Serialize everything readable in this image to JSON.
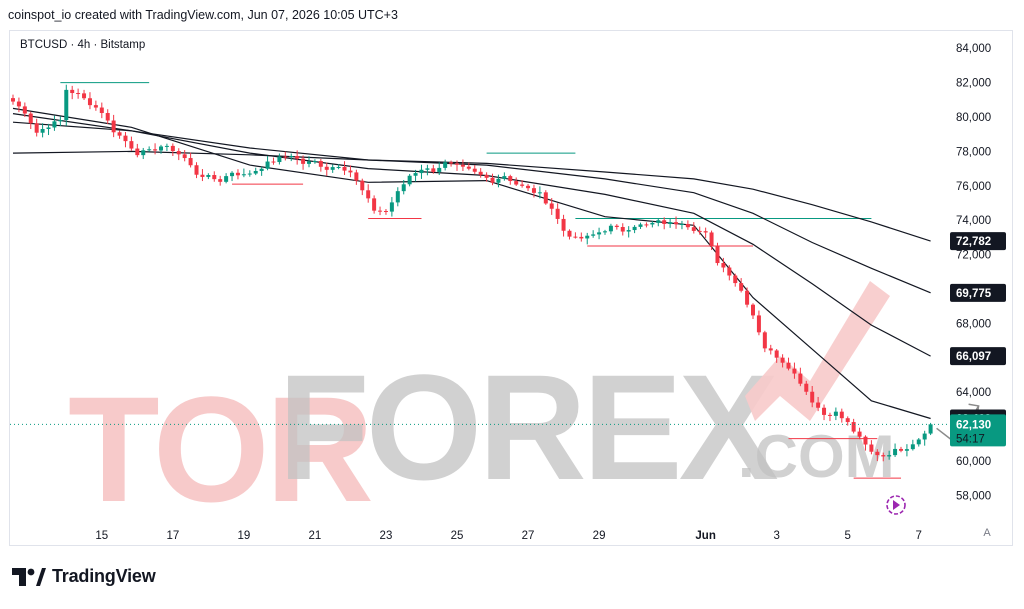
{
  "header": {
    "caption": "coinspot_io created with TradingView.com, Jun 07, 2026 10:05 UTC+3"
  },
  "symbol": {
    "label": "BTCUSD · 4h · Bitstamp"
  },
  "watermark": {
    "left_text": "TOR",
    "right_text": "FOREX",
    "suffix": ".COM"
  },
  "brand": {
    "name": "TradingView",
    "icon": "tradingview-logo-icon"
  },
  "auto_scale": {
    "label": "A"
  },
  "colors": {
    "up": "#089981",
    "down": "#f23645",
    "ma": "#131722",
    "level": "#f23645",
    "level_up": "#089981",
    "watermark_gray": "#c2c2c2",
    "watermark_red": "#f7caca",
    "badge_dark": "#131722",
    "badge_green": "#089981",
    "arrow": "#8a8a8a"
  },
  "chart_data": {
    "type": "candlestick",
    "title": "",
    "xlabel": "",
    "ylabel": "",
    "ylim": [
      56800,
      85000
    ],
    "y_ticks": [
      84000,
      82000,
      80000,
      78000,
      76000,
      74000,
      72000,
      70000,
      68000,
      66000,
      64000,
      62000,
      60000,
      58000
    ],
    "x_ticks": [
      {
        "label": "15",
        "idx": 15
      },
      {
        "label": "17",
        "idx": 27
      },
      {
        "label": "19",
        "idx": 39
      },
      {
        "label": "21",
        "idx": 51
      },
      {
        "label": "23",
        "idx": 63
      },
      {
        "label": "25",
        "idx": 75
      },
      {
        "label": "27",
        "idx": 87
      },
      {
        "label": "29",
        "idx": 99
      },
      {
        "label": "Jun",
        "idx": 117
      },
      {
        "label": "3",
        "idx": 129
      },
      {
        "label": "5",
        "idx": 141
      },
      {
        "label": "7",
        "idx": 153
      }
    ],
    "grid": false,
    "candle_count": 156,
    "close_path": [
      [
        0,
        80900
      ],
      [
        2,
        80300
      ],
      [
        4,
        79100
      ],
      [
        6,
        79500
      ],
      [
        8,
        79800
      ],
      [
        9,
        81600
      ],
      [
        11,
        81300
      ],
      [
        13,
        80800
      ],
      [
        15,
        80300
      ],
      [
        17,
        79200
      ],
      [
        19,
        78600
      ],
      [
        21,
        77900
      ],
      [
        23,
        78000
      ],
      [
        25,
        78300
      ],
      [
        27,
        78100
      ],
      [
        29,
        77600
      ],
      [
        31,
        76700
      ],
      [
        33,
        76500
      ],
      [
        35,
        76300
      ],
      [
        37,
        76800
      ],
      [
        39,
        76600
      ],
      [
        41,
        76900
      ],
      [
        43,
        77300
      ],
      [
        45,
        77600
      ],
      [
        47,
        77800
      ],
      [
        49,
        77300
      ],
      [
        51,
        77400
      ],
      [
        53,
        77000
      ],
      [
        55,
        77200
      ],
      [
        57,
        76800
      ],
      [
        59,
        75700
      ],
      [
        61,
        74600
      ],
      [
        63,
        74500
      ],
      [
        65,
        75600
      ],
      [
        67,
        76600
      ],
      [
        69,
        77000
      ],
      [
        71,
        76900
      ],
      [
        73,
        77300
      ],
      [
        75,
        77100
      ],
      [
        77,
        76900
      ],
      [
        79,
        76600
      ],
      [
        81,
        76300
      ],
      [
        83,
        76600
      ],
      [
        85,
        76100
      ],
      [
        87,
        75800
      ],
      [
        89,
        75500
      ],
      [
        91,
        74700
      ],
      [
        93,
        73400
      ],
      [
        95,
        72900
      ],
      [
        97,
        73000
      ],
      [
        99,
        73300
      ],
      [
        101,
        73600
      ],
      [
        103,
        73400
      ],
      [
        105,
        73700
      ],
      [
        107,
        73700
      ],
      [
        109,
        73900
      ],
      [
        111,
        73800
      ],
      [
        113,
        73900
      ],
      [
        115,
        73500
      ],
      [
        117,
        73200
      ],
      [
        119,
        71600
      ],
      [
        121,
        70900
      ],
      [
        123,
        69900
      ],
      [
        125,
        68500
      ],
      [
        127,
        66600
      ],
      [
        129,
        66100
      ],
      [
        131,
        65500
      ],
      [
        133,
        64600
      ],
      [
        135,
        63500
      ],
      [
        137,
        62700
      ],
      [
        139,
        62800
      ],
      [
        141,
        62200
      ],
      [
        143,
        61300
      ],
      [
        145,
        60500
      ],
      [
        147,
        60300
      ],
      [
        149,
        60600
      ],
      [
        151,
        60800
      ],
      [
        153,
        61300
      ],
      [
        155,
        62130
      ]
    ],
    "moving_averages": [
      {
        "name": "",
        "label": "62,469",
        "points": [
          [
            0,
            80500
          ],
          [
            20,
            79400
          ],
          [
            40,
            77200
          ],
          [
            60,
            76200
          ],
          [
            80,
            76300
          ],
          [
            100,
            74200
          ],
          [
            115,
            73700
          ],
          [
            125,
            69500
          ],
          [
            135,
            66500
          ],
          [
            145,
            63500
          ],
          [
            155,
            62469
          ]
        ]
      },
      {
        "name": "",
        "label": "66,097",
        "points": [
          [
            0,
            80200
          ],
          [
            20,
            79200
          ],
          [
            40,
            77900
          ],
          [
            60,
            77000
          ],
          [
            80,
            76600
          ],
          [
            100,
            75500
          ],
          [
            115,
            74400
          ],
          [
            125,
            72600
          ],
          [
            135,
            70300
          ],
          [
            145,
            67900
          ],
          [
            155,
            66097
          ]
        ]
      },
      {
        "name": "",
        "label": "69,775",
        "points": [
          [
            0,
            79700
          ],
          [
            20,
            79200
          ],
          [
            40,
            78200
          ],
          [
            60,
            77500
          ],
          [
            80,
            77200
          ],
          [
            100,
            76400
          ],
          [
            115,
            75600
          ],
          [
            125,
            74400
          ],
          [
            135,
            72700
          ],
          [
            145,
            71200
          ],
          [
            155,
            69775
          ]
        ]
      },
      {
        "name": "",
        "label": "72,782",
        "points": [
          [
            0,
            77900
          ],
          [
            20,
            78000
          ],
          [
            40,
            77800
          ],
          [
            60,
            77500
          ],
          [
            80,
            77300
          ],
          [
            100,
            76800
          ],
          [
            115,
            76400
          ],
          [
            125,
            75800
          ],
          [
            135,
            74900
          ],
          [
            145,
            73900
          ],
          [
            155,
            72782
          ]
        ]
      }
    ],
    "levels": [
      {
        "kind": "resistance",
        "price": 82000,
        "from": 8,
        "to": 23
      },
      {
        "kind": "resistance",
        "price": 74100,
        "from": 95,
        "to": 145
      },
      {
        "kind": "resistance",
        "price": 77900,
        "from": 80,
        "to": 95
      },
      {
        "kind": "support",
        "price": 72500,
        "from": 97,
        "to": 125
      },
      {
        "kind": "support",
        "price": 74100,
        "from": 60,
        "to": 69
      },
      {
        "kind": "support",
        "price": 61300,
        "from": 131,
        "to": 146
      },
      {
        "kind": "support",
        "price": 59000,
        "from": 142,
        "to": 150
      },
      {
        "kind": "support",
        "price": 76100,
        "from": 37,
        "to": 49
      }
    ],
    "last_price": {
      "label": "62,130",
      "value": 62130,
      "timer": "54:17"
    }
  }
}
